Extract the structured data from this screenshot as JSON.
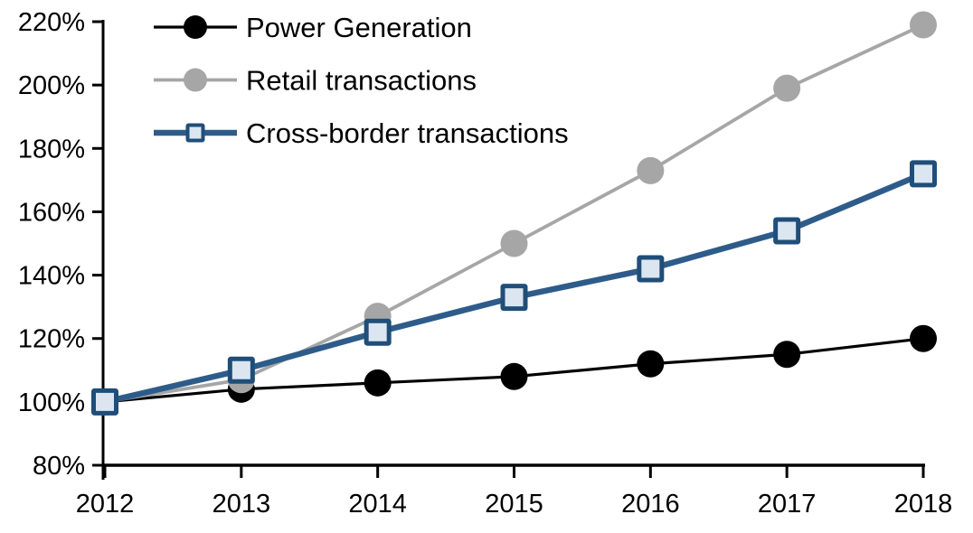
{
  "chart_data": {
    "type": "line",
    "x": [
      "2012",
      "2013",
      "2014",
      "2015",
      "2016",
      "2017",
      "2018"
    ],
    "series": [
      {
        "name": "Power Generation",
        "color": "#000000",
        "marker": "circle",
        "marker_fill": "#000000",
        "values": [
          100,
          104,
          106,
          108,
          112,
          115,
          120
        ]
      },
      {
        "name": "Retail transactions",
        "color": "#A6A6A6",
        "marker": "circle",
        "marker_fill": "#A6A6A6",
        "values": [
          100,
          107,
          127,
          150,
          173,
          199,
          219
        ]
      },
      {
        "name": "Cross-border transactions",
        "color": "#2E5C8A",
        "marker": "square",
        "marker_fill": "#DCE6F1",
        "marker_stroke": "#1F4E79",
        "values": [
          100,
          110,
          122,
          133,
          142,
          154,
          172
        ]
      }
    ],
    "ylim": [
      80,
      220
    ],
    "ytick_step": 20,
    "ytick_labels": [
      "220%",
      "200%",
      "180%",
      "160%",
      "140%",
      "120%",
      "100%",
      "80%"
    ],
    "ytick_suffix": "%",
    "grid": false,
    "legend_position": "top-left",
    "axis_color": "#000000"
  }
}
